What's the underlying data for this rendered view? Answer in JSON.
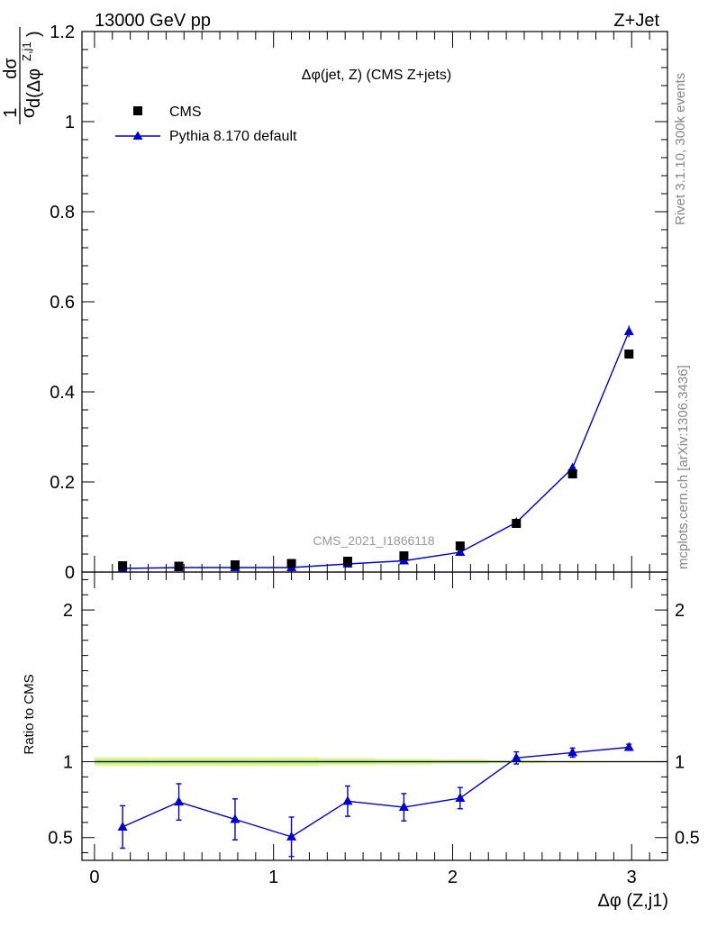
{
  "header": {
    "energy_label": "13000 GeV pp",
    "process_label": "Z+Jet"
  },
  "side_labels": {
    "rivet": "Rivet 3.1.10,  300k events",
    "mcplots": "mcplots.cern.ch [arXiv:1306.3436]"
  },
  "watermark": "CMS_2021_I1866118",
  "colors": {
    "data_marker": "#000000",
    "mc_line": "#0000d0",
    "band_outer": "#e6f59a",
    "band_inner": "#b4f08c"
  },
  "chart_data": [
    {
      "type": "scatter",
      "panel": "main",
      "title": "Δφ(jet, Z) (CMS Z+jets)",
      "ylabel": {
        "prefix": "1",
        "sigma": "σ",
        "numerator": "dσ",
        "denominator": "d(Δφ",
        "superscript": "Z,j1",
        "close": ")"
      },
      "xlim": [
        -0.07,
        3.2
      ],
      "ylim": [
        0,
        1.2
      ],
      "yticks": [
        "0",
        "0.2",
        "0.4",
        "0.6",
        "0.8",
        "1",
        "1.2"
      ],
      "legend": [
        {
          "name": "CMS",
          "marker": "square"
        },
        {
          "name": "Pythia 8.170 default",
          "marker": "triangle-line"
        }
      ],
      "x": [
        0.157,
        0.471,
        0.785,
        1.1,
        1.414,
        1.728,
        2.042,
        2.356,
        2.67,
        2.985
      ],
      "series": [
        {
          "name": "CMS",
          "values": [
            0.014,
            0.013,
            0.016,
            0.019,
            0.024,
            0.036,
            0.058,
            0.108,
            0.218,
            0.484
          ]
        },
        {
          "name": "Pythia 8.170 default",
          "values": [
            0.008,
            0.01,
            0.01,
            0.01,
            0.018,
            0.025,
            0.044,
            0.11,
            0.231,
            0.534
          ],
          "errors": [
            0.001,
            0.001,
            0.001,
            0.001,
            0.002,
            0.002,
            0.003,
            0.004,
            0.006,
            0.013
          ]
        }
      ]
    },
    {
      "type": "line",
      "panel": "ratio",
      "ylabel": "Ratio to CMS",
      "xlabel": "Δφ (Z,j1)",
      "xlim": [
        -0.07,
        3.2
      ],
      "ylim": [
        0.35,
        2.25
      ],
      "yticks": [
        "0.5",
        "1",
        "2"
      ],
      "xticks": [
        "0",
        "1",
        "2",
        "3"
      ],
      "x": [
        0.157,
        0.471,
        0.785,
        1.1,
        1.414,
        1.728,
        2.042,
        2.356,
        2.67,
        2.985
      ],
      "series": [
        {
          "name": "Pythia 8.170 default",
          "values": [
            0.57,
            0.735,
            0.62,
            0.505,
            0.74,
            0.7,
            0.76,
            1.025,
            1.06,
            1.095
          ],
          "errors": [
            0.14,
            0.12,
            0.135,
            0.13,
            0.1,
            0.09,
            0.07,
            0.04,
            0.03,
            0.02
          ]
        }
      ],
      "reference": 1.0,
      "band": [
        0.03,
        0.03,
        0.03,
        0.03,
        0.025,
        0.02,
        0.015,
        0.01,
        0.006,
        0.004
      ]
    }
  ]
}
